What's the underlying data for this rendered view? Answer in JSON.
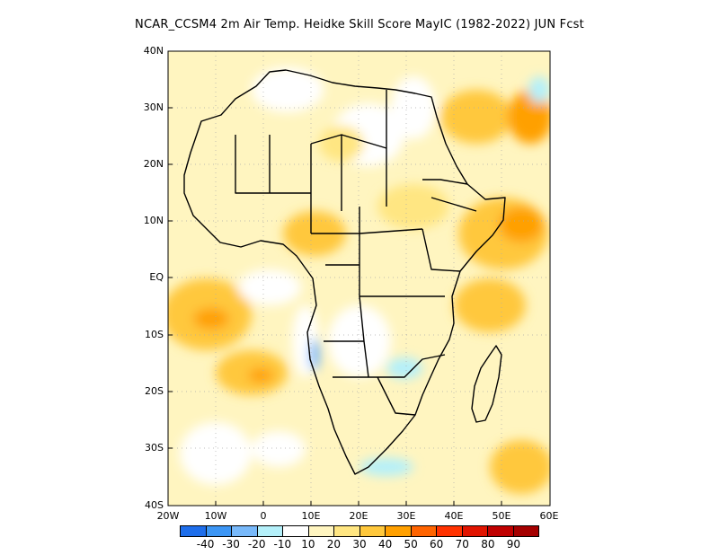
{
  "title": "NCAR_CCSM4 2m Air Temp. Heidke Skill Score MayIC (1982-2022) JUN Fcst",
  "map": {
    "lat_labels": [
      "40N",
      "30N",
      "20N",
      "10N",
      "EQ",
      "10S",
      "20S",
      "30S",
      "40S"
    ],
    "lon_labels": [
      "20W",
      "10W",
      "0",
      "10E",
      "20E",
      "30E",
      "40E",
      "50E",
      "60E"
    ],
    "lat_range": [
      -40,
      40
    ],
    "lon_range": [
      -20,
      60
    ],
    "grid": "dotted",
    "land_outline_color": "#000000"
  },
  "colorbar": {
    "labels": [
      "-40",
      "-30",
      "-20",
      "-10",
      "10",
      "20",
      "30",
      "40",
      "50",
      "60",
      "70",
      "80",
      "90"
    ],
    "colors": [
      "#1e6eeb",
      "#3c96f5",
      "#78b9fa",
      "#b4f0fa",
      "#ffffff",
      "#fff5c0",
      "#ffe682",
      "#ffc83c",
      "#ffa000",
      "#ff6400",
      "#ff3200",
      "#e11400",
      "#c00000",
      "#a50000"
    ]
  }
}
